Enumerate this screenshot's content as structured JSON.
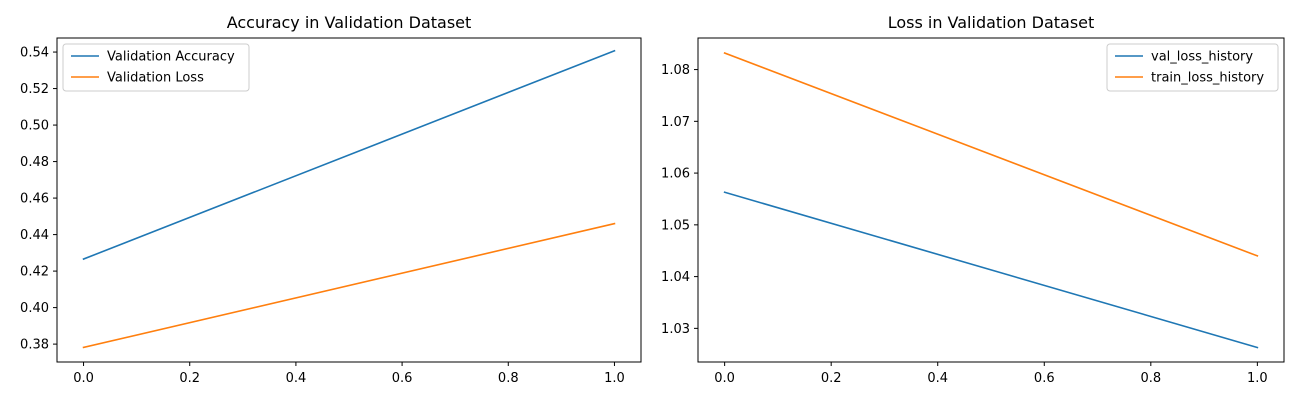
{
  "chart_data": [
    {
      "type": "line",
      "title": "Accuracy in Validation Dataset",
      "xlabel": "",
      "ylabel": "",
      "xlim": [
        -0.05,
        1.05
      ],
      "ylim": [
        0.3702,
        0.5477
      ],
      "x_ticks": [
        0.0,
        0.2,
        0.4,
        0.6,
        0.8,
        1.0
      ],
      "x_tick_labels": [
        "0.0",
        "0.2",
        "0.4",
        "0.6",
        "0.8",
        "1.0"
      ],
      "y_ticks": [
        0.38,
        0.4,
        0.42,
        0.44,
        0.46,
        0.48,
        0.5,
        0.52,
        0.54
      ],
      "y_tick_labels": [
        "0.38",
        "0.40",
        "0.42",
        "0.44",
        "0.46",
        "0.48",
        "0.50",
        "0.52",
        "0.54"
      ],
      "grid": false,
      "legend_position": "top-left",
      "series": [
        {
          "name": "Validation Accuracy",
          "color": "#1f77b4",
          "x": [
            0,
            1
          ],
          "y": [
            0.4266,
            0.5407
          ]
        },
        {
          "name": "Validation Loss",
          "color": "#ff7f0e",
          "x": [
            0,
            1
          ],
          "y": [
            0.3782,
            0.446
          ]
        }
      ]
    },
    {
      "type": "line",
      "title": "Loss in Validation Dataset",
      "xlabel": "",
      "ylabel": "",
      "xlim": [
        -0.05,
        1.05
      ],
      "ylim": [
        1.0235,
        1.0861
      ],
      "x_ticks": [
        0.0,
        0.2,
        0.4,
        0.6,
        0.8,
        1.0
      ],
      "x_tick_labels": [
        "0.0",
        "0.2",
        "0.4",
        "0.6",
        "0.8",
        "1.0"
      ],
      "y_ticks": [
        1.03,
        1.04,
        1.05,
        1.06,
        1.07,
        1.08
      ],
      "y_tick_labels": [
        "1.03",
        "1.04",
        "1.05",
        "1.06",
        "1.07",
        "1.08"
      ],
      "grid": false,
      "legend_position": "top-right",
      "series": [
        {
          "name": "val_loss_history",
          "color": "#1f77b4",
          "x": [
            0,
            1
          ],
          "y": [
            1.0563,
            1.0263
          ]
        },
        {
          "name": "train_loss_history",
          "color": "#ff7f0e",
          "x": [
            0,
            1
          ],
          "y": [
            1.0832,
            1.044
          ]
        }
      ]
    }
  ]
}
